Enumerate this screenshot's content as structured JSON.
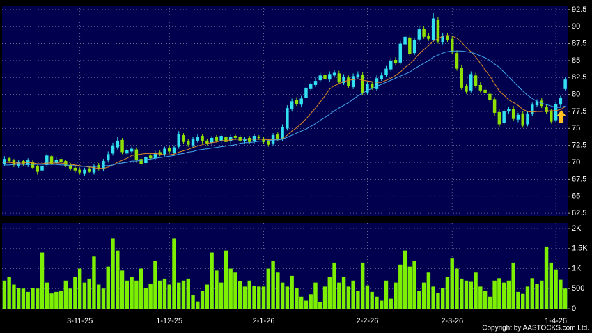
{
  "chart_data": [
    {
      "type": "candlestick",
      "up_color": "#33e0f0",
      "down_color": "#8ee000",
      "xlim": [
        -0.5,
        119.5
      ],
      "ylim": [
        62.1,
        93.1
      ],
      "yticks": [
        62.5,
        65,
        67.5,
        70,
        72.5,
        75,
        77.5,
        80,
        82.5,
        85,
        87.5,
        90,
        92.5
      ],
      "grid": true,
      "open": [
        69.8,
        70.6,
        70.3,
        69.5,
        70.2,
        69.6,
        70.1,
        69.4,
        68.8,
        69.6,
        70.9,
        69.9,
        70.5,
        70.2,
        69.6,
        69.2,
        68.9,
        68.3,
        69.1,
        68.5,
        69.6,
        69.0,
        70.3,
        71.3,
        72.2,
        73.3,
        71.3,
        71.6,
        71.9,
        70.5,
        69.9,
        71.0,
        70.6,
        71.5,
        71.2,
        72.1,
        71.4,
        72.3,
        74.0,
        73.1,
        72.5,
        73.2,
        73.9,
        73.2,
        72.9,
        73.7,
        73.1,
        73.8,
        73.1,
        73.9,
        73.7,
        73.1,
        73.6,
        73.1,
        73.8,
        73.5,
        73.2,
        72.8,
        74.1,
        73.4,
        75.0,
        77.9,
        79.2,
        78.5,
        79.5,
        80.8,
        81.4,
        82.1,
        82.9,
        82.2,
        82.8,
        83.1,
        81.7,
        82.5,
        81.1,
        82.6,
        82.9,
        80.3,
        81.6,
        80.8,
        82.3,
        82.9,
        83.7,
        85.1,
        84.7,
        87.4,
        88.4,
        86.1,
        88.1,
        89.7,
        88.6,
        88.0,
        91.0,
        87.7,
        88.7,
        88.2,
        86.1,
        83.9,
        81.2,
        80.6,
        82.8,
        81.4,
        80.7,
        80.1,
        79.3,
        77.4,
        75.8,
        77.5,
        77.9,
        76.3,
        77.2,
        75.6,
        77.1,
        78.4,
        79.1,
        78.2,
        77.6,
        76.2,
        78.5,
        80.8
      ],
      "high": [
        70.9,
        70.8,
        70.5,
        70.3,
        70.4,
        70.6,
        70.3,
        69.6,
        69.8,
        71.3,
        71.1,
        70.7,
        70.8,
        70.4,
        69.9,
        69.5,
        69.2,
        69.2,
        69.4,
        69.7,
        69.9,
        70.5,
        71.6,
        72.9,
        73.7,
        73.6,
        72.1,
        72.3,
        72.2,
        70.8,
        71.1,
        71.2,
        71.7,
        71.8,
        72.3,
        72.4,
        72.5,
        74.6,
        74.3,
        73.4,
        73.7,
        74.1,
        74.2,
        73.5,
        73.9,
        74.0,
        74.2,
        74.1,
        74.1,
        74.2,
        74.0,
        73.8,
        73.9,
        74.2,
        74.0,
        73.8,
        73.4,
        74.3,
        74.4,
        75.6,
        78.4,
        79.4,
        79.6,
        79.8,
        81.4,
        81.9,
        82.5,
        83.2,
        83.3,
        83.4,
        83.6,
        83.5,
        83.0,
        82.8,
        83.1,
        83.4,
        83.3,
        81.9,
        81.9,
        82.8,
        83.2,
        84.2,
        85.4,
        85.5,
        87.9,
        88.9,
        88.8,
        88.4,
        90.0,
        90.1,
        89.0,
        92.0,
        91.4,
        89.0,
        89.1,
        88.6,
        86.5,
        84.3,
        81.6,
        83.4,
        83.2,
        81.8,
        81.1,
        80.5,
        79.6,
        77.8,
        77.9,
        78.2,
        78.3,
        77.3,
        77.6,
        77.5,
        78.8,
        79.3,
        79.5,
        78.6,
        77.9,
        78.9,
        79.8,
        82.5
      ],
      "low": [
        69.5,
        69.9,
        69.3,
        69.2,
        69.5,
        69.3,
        69.0,
        68.2,
        68.5,
        69.3,
        69.6,
        69.6,
        69.8,
        69.3,
        68.8,
        68.5,
        68.2,
        68.0,
        68.4,
        68.2,
        68.8,
        68.7,
        70.0,
        71.0,
        71.9,
        71.2,
        71.0,
        71.3,
        70.1,
        69.5,
        69.6,
        70.3,
        70.3,
        70.9,
        70.9,
        71.3,
        71.1,
        72.0,
        72.7,
        72.3,
        72.2,
        72.9,
        72.8,
        72.5,
        72.6,
        72.9,
        72.8,
        72.7,
        72.8,
        73.3,
        72.9,
        72.8,
        72.7,
        72.8,
        73.3,
        72.7,
        72.3,
        72.5,
        73.2,
        73.1,
        74.7,
        77.5,
        78.3,
        78.2,
        79.2,
        80.5,
        81.1,
        81.8,
        82.0,
        81.9,
        82.5,
        81.5,
        81.4,
        80.9,
        80.8,
        82.3,
        79.9,
        80.0,
        80.7,
        80.5,
        82.0,
        82.6,
        83.4,
        84.3,
        84.4,
        87.1,
        85.7,
        85.8,
        87.8,
        88.2,
        87.9,
        87.7,
        87.5,
        87.4,
        87.7,
        85.9,
        83.5,
        80.7,
        80.1,
        80.3,
        80.9,
        80.3,
        79.9,
        78.9,
        76.9,
        75.2,
        75.5,
        77.2,
        76.1,
        75.9,
        75.1,
        75.3,
        76.8,
        78.1,
        78.0,
        77.1,
        75.7,
        75.9,
        78.2,
        80.6
      ],
      "close": [
        70.5,
        70.2,
        69.6,
        70.0,
        69.8,
        70.3,
        69.2,
        68.6,
        69.5,
        71.0,
        69.8,
        70.4,
        70.1,
        69.5,
        69.1,
        68.8,
        68.5,
        68.9,
        68.6,
        69.4,
        69.1,
        70.2,
        71.2,
        72.5,
        73.2,
        71.5,
        71.8,
        72.0,
        70.4,
        69.8,
        70.8,
        70.6,
        71.4,
        71.2,
        72.0,
        71.6,
        72.2,
        74.2,
        73.0,
        72.6,
        73.4,
        73.8,
        73.1,
        72.8,
        73.6,
        73.2,
        73.9,
        73.0,
        73.8,
        73.6,
        73.2,
        73.5,
        73.0,
        73.9,
        73.6,
        73.0,
        72.6,
        74.0,
        73.5,
        75.2,
        78.0,
        79.0,
        78.6,
        79.4,
        81.0,
        81.5,
        82.0,
        82.8,
        82.3,
        83.0,
        83.2,
        81.8,
        82.6,
        81.2,
        82.7,
        83.0,
        80.2,
        81.5,
        81.0,
        82.4,
        82.8,
        83.8,
        85.0,
        84.6,
        87.5,
        88.5,
        86.0,
        88.0,
        89.6,
        88.5,
        88.2,
        91.2,
        87.8,
        88.6,
        88.0,
        86.2,
        83.8,
        81.0,
        80.4,
        83.0,
        81.3,
        80.6,
        80.2,
        79.2,
        77.3,
        75.6,
        77.6,
        77.8,
        76.4,
        77.0,
        75.4,
        77.2,
        78.5,
        79.0,
        78.3,
        77.4,
        76.0,
        78.6,
        79.5,
        82.2
      ],
      "series": [
        {
          "color": "#e08a28",
          "values": [
            70.0,
            70.0,
            69.9,
            69.9,
            69.9,
            70.0,
            69.9,
            69.8,
            69.8,
            69.9,
            69.9,
            69.9,
            69.9,
            69.8,
            69.7,
            69.6,
            69.5,
            69.4,
            69.3,
            69.2,
            69.1,
            69.1,
            69.3,
            69.6,
            70.0,
            70.3,
            70.6,
            71.0,
            71.1,
            71.2,
            71.3,
            71.3,
            71.3,
            71.2,
            71.1,
            71.1,
            71.2,
            71.5,
            71.7,
            71.9,
            72.2,
            72.4,
            72.6,
            72.8,
            72.9,
            73.0,
            73.2,
            73.2,
            73.3,
            73.4,
            73.4,
            73.4,
            73.4,
            73.4,
            73.4,
            73.4,
            73.3,
            73.4,
            73.4,
            73.5,
            74.0,
            74.6,
            75.1,
            75.7,
            76.4,
            77.2,
            78.0,
            78.9,
            79.8,
            80.8,
            81.3,
            81.6,
            81.9,
            82.1,
            82.2,
            82.3,
            82.1,
            82.0,
            81.9,
            81.8,
            81.8,
            82.1,
            82.4,
            82.8,
            83.3,
            84.0,
            84.5,
            85.2,
            86.0,
            86.6,
            87.2,
            87.9,
            88.2,
            88.6,
            88.7,
            88.6,
            88.3,
            87.7,
            86.9,
            86.3,
            85.5,
            84.6,
            83.6,
            82.7,
            81.6,
            80.5,
            79.9,
            79.2,
            78.8,
            78.4,
            77.8,
            77.5,
            77.4,
            77.5,
            77.5,
            77.6,
            77.6,
            77.6,
            77.8,
            78.2
          ]
        },
        {
          "color": "#44aaee",
          "values": [
            69.6,
            69.6,
            69.7,
            69.7,
            69.7,
            69.7,
            69.7,
            69.7,
            69.7,
            69.7,
            69.7,
            69.7,
            69.6,
            69.6,
            69.5,
            69.5,
            69.4,
            69.4,
            69.4,
            69.4,
            69.4,
            69.5,
            69.5,
            69.6,
            69.8,
            69.9,
            70.0,
            70.2,
            70.2,
            70.3,
            70.4,
            70.5,
            70.6,
            70.7,
            70.8,
            70.9,
            71.0,
            71.2,
            71.3,
            71.5,
            71.6,
            71.8,
            71.9,
            72.0,
            72.1,
            72.2,
            72.3,
            72.4,
            72.5,
            72.6,
            72.8,
            72.9,
            72.9,
            73.0,
            73.1,
            73.1,
            73.2,
            73.3,
            73.3,
            73.4,
            73.7,
            74.0,
            74.3,
            74.6,
            74.9,
            75.3,
            75.7,
            76.2,
            76.6,
            77.1,
            77.6,
            78.0,
            78.4,
            78.8,
            79.3,
            79.8,
            80.2,
            80.6,
            80.9,
            81.2,
            81.5,
            81.8,
            82.1,
            82.4,
            82.7,
            83.0,
            83.3,
            83.8,
            84.2,
            84.6,
            85.0,
            85.5,
            85.8,
            86.1,
            86.3,
            86.4,
            86.4,
            86.4,
            86.3,
            86.2,
            86.0,
            85.7,
            85.4,
            85.0,
            84.5,
            84.0,
            83.3,
            82.6,
            81.9,
            81.2,
            80.5,
            79.9,
            79.4,
            79.0,
            78.7,
            78.5,
            78.3,
            78.1,
            78.1,
            78.3
          ]
        }
      ]
    },
    {
      "type": "bar",
      "color": "#7cf000",
      "xlim": [
        -0.5,
        119.5
      ],
      "xticks": [
        {
          "value": 16,
          "label": "3-11-25"
        },
        {
          "value": 35,
          "label": "1-12-25"
        },
        {
          "value": 55,
          "label": "2-1-26"
        },
        {
          "value": 77,
          "label": "2-2-26"
        },
        {
          "value": 95,
          "label": "2-3-26"
        },
        {
          "value": 117,
          "label": "1-4-26"
        }
      ],
      "ylim": [
        0,
        2140
      ],
      "yticks": [
        0,
        500,
        {
          "value": 1000,
          "label": "1K"
        },
        {
          "value": 1500,
          "label": "1.5K"
        },
        {
          "value": 2000,
          "label": "2K"
        }
      ],
      "grid": true,
      "values": [
        700,
        800,
        600,
        520,
        500,
        420,
        520,
        500,
        1400,
        650,
        380,
        420,
        450,
        700,
        500,
        800,
        1000,
        650,
        750,
        1300,
        600,
        500,
        1050,
        1750,
        1450,
        950,
        700,
        800,
        700,
        1000,
        520,
        620,
        1200,
        700,
        750,
        600,
        1750,
        650,
        700,
        750,
        330,
        180,
        450,
        600,
        1400,
        950,
        650,
        1450,
        1000,
        900,
        680,
        550,
        700,
        570,
        550,
        550,
        1000,
        1200,
        900,
        650,
        550,
        820,
        520,
        300,
        200,
        360,
        650,
        170,
        550,
        800,
        1150,
        650,
        800,
        550,
        700,
        440,
        1150,
        580,
        420,
        300,
        200,
        700,
        250,
        650,
        1100,
        1450,
        1050,
        1200,
        450,
        650,
        900,
        550,
        400,
        520,
        800,
        1250,
        1000,
        750,
        700,
        670,
        900,
        550,
        450,
        300,
        700,
        760,
        650,
        700,
        1150,
        420,
        370,
        550,
        760,
        620,
        700,
        1550,
        1150,
        980,
        720,
        500
      ]
    }
  ],
  "footer": "Copyright by AASTOCKS.com Ltd."
}
